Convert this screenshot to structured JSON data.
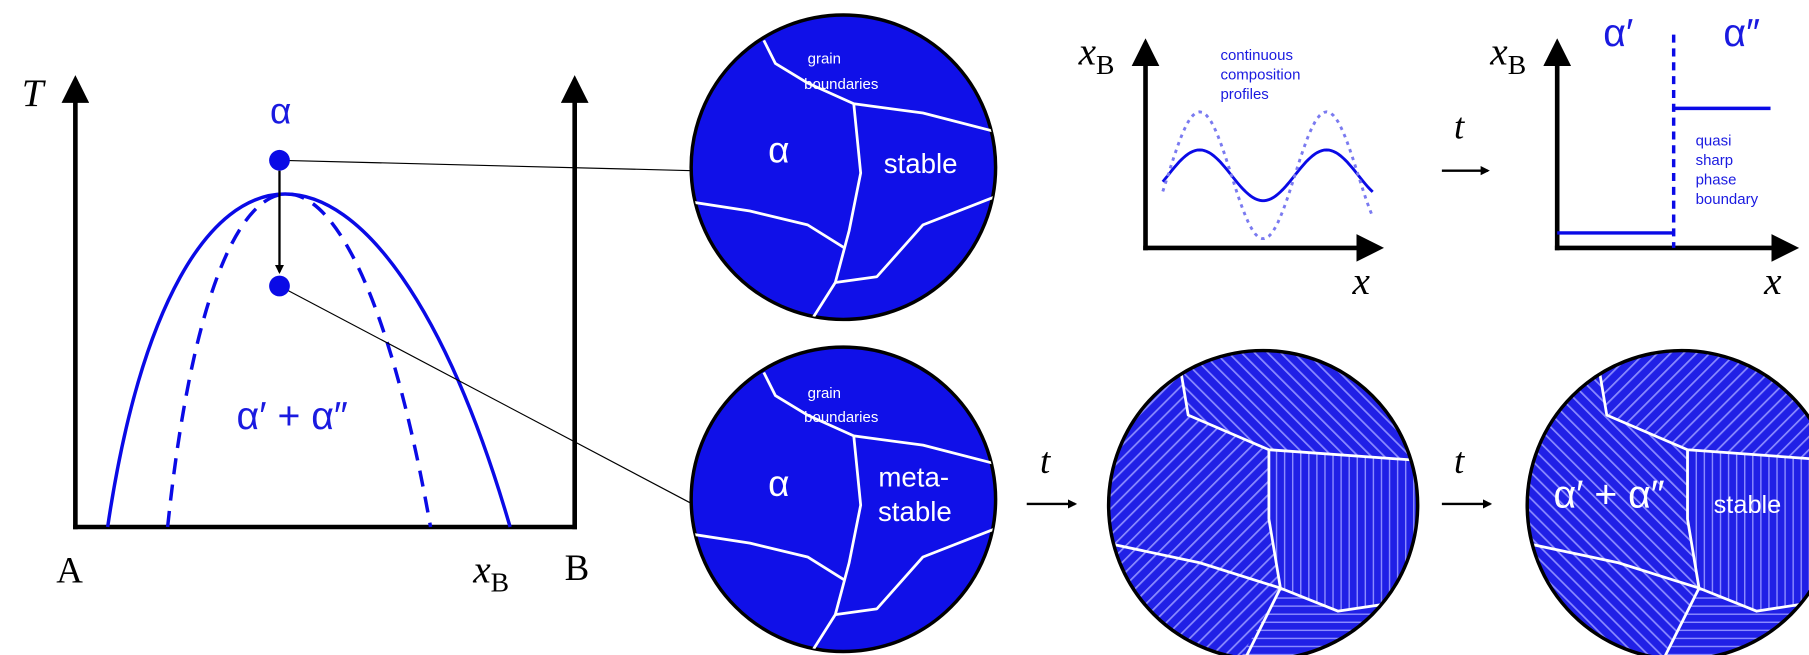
{
  "phase_diagram": {
    "y_axis": "T",
    "x_axis": {
      "symbol": "x",
      "subscript": "B"
    },
    "left_end": "A",
    "right_end": "B",
    "point_label": "α",
    "region_label": "α′ + α″"
  },
  "microstructures": [
    {
      "grain_label": [
        "grain",
        "boundaries"
      ],
      "phase": "α",
      "state": [
        "stable"
      ]
    },
    {
      "grain_label": [
        "grain",
        "boundaries"
      ],
      "phase": "α",
      "state": [
        "meta-",
        "stable"
      ]
    },
    {
      "phase": "α′ + α″",
      "state": [
        "stable"
      ]
    }
  ],
  "time_arrows": [
    "t",
    "t",
    "t"
  ],
  "profiles": [
    {
      "y_axis": {
        "symbol": "x",
        "subscript": "B"
      },
      "x_axis": "x",
      "note": [
        "continuous",
        "composition",
        "profiles"
      ]
    },
    {
      "y_axis": {
        "symbol": "x",
        "subscript": "B"
      },
      "x_axis": "x",
      "phase_labels": [
        "α′",
        "α″"
      ],
      "note": [
        "quasi",
        "sharp",
        "phase",
        "boundary"
      ]
    }
  ]
}
